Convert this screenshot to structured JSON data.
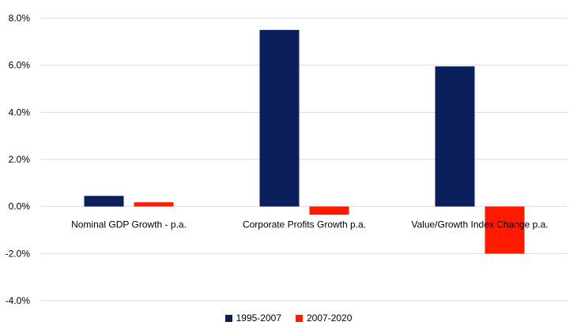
{
  "chart_data": {
    "type": "bar",
    "categories": [
      "Nominal GDP Growth - p.a.",
      "Corporate Profits Growth p.a.",
      "Value/Growth Index Change p.a."
    ],
    "series": [
      {
        "name": "1995-2007",
        "color": "#0a1f5c",
        "values": [
          0.45,
          7.5,
          5.95
        ]
      },
      {
        "name": "2007-2020",
        "color": "#ff1a00",
        "values": [
          0.18,
          -0.35,
          -2.0
        ]
      }
    ],
    "ylim": [
      -4,
      8
    ],
    "yticks": [
      8,
      6,
      4,
      2,
      0,
      -2,
      -4
    ],
    "ytick_labels": [
      "8.0%",
      "6.0%",
      "4.0%",
      "2.0%",
      "0.0%",
      "-2.0%",
      "-4.0%"
    ],
    "grid": true,
    "legend_position": "bottom"
  }
}
